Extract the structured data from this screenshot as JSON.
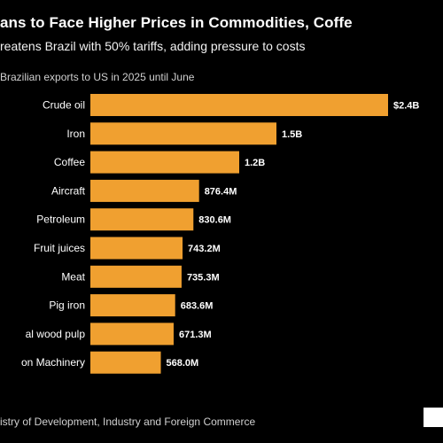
{
  "title": "ans to Face Higher Prices in Commodities, Coffe",
  "subtitle": "reatens Brazil with 50% tariffs, adding pressure to costs",
  "caption": "Brazilian exports to US in 2025 until June",
  "source": "istry of Development, Industry and Foreign Commerce",
  "colors": {
    "background": "#000000",
    "bar": "#f0a030",
    "text": "#ffffff"
  },
  "chart_data": {
    "type": "bar",
    "orientation": "horizontal",
    "title": "",
    "xlabel": "",
    "ylabel": "",
    "categories": [
      "Crude oil",
      "Iron",
      "Coffee",
      "Aircraft",
      "Petroleum",
      "Fruit juices",
      "Meat",
      "Pig iron",
      "al wood pulp",
      "on Machinery"
    ],
    "values": [
      2.4,
      1.5,
      1.2,
      0.8764,
      0.8306,
      0.7432,
      0.7353,
      0.6836,
      0.6713,
      0.568
    ],
    "value_labels": [
      "$2.4B",
      "1.5B",
      "1.2B",
      "876.4M",
      "830.6M",
      "743.2M",
      "735.3M",
      "683.6M",
      "671.3M",
      "568.0M"
    ],
    "unit": "USD billions",
    "xlim": [
      0,
      2.4
    ],
    "grid": false,
    "legend": "none"
  }
}
